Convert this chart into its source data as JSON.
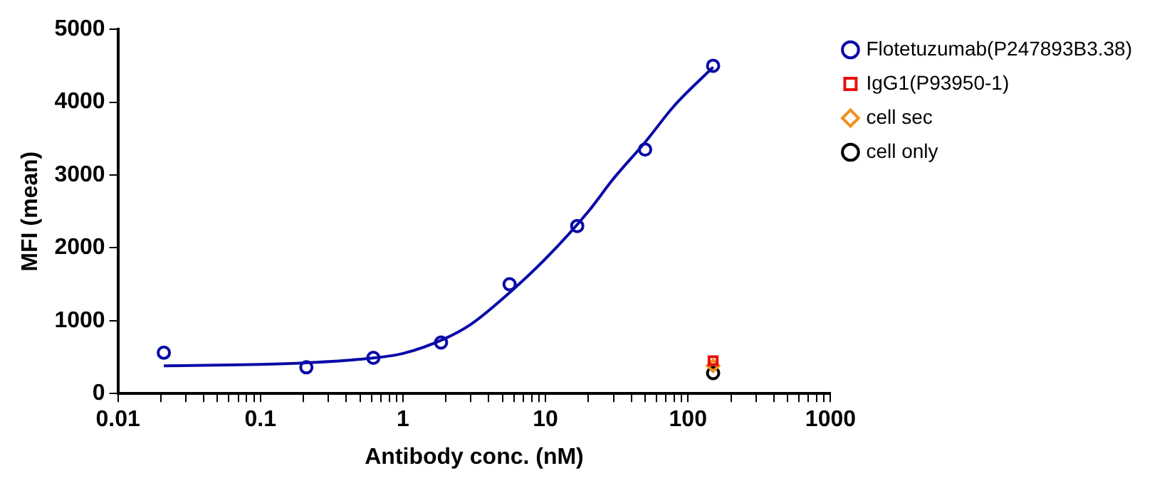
{
  "chart_data": {
    "type": "scatter",
    "xlabel": "Antibody conc. (nM)",
    "ylabel": "MFI (mean)",
    "log": "x",
    "xlim": [
      0.01,
      1000
    ],
    "ylim": [
      0,
      5000
    ],
    "xticks": [
      0.01,
      {
        "value": 0.02,
        "label": null
      },
      {
        "value": 0.03,
        "label": null
      },
      {
        "value": 0.04,
        "label": null
      },
      {
        "value": 0.05,
        "label": null
      },
      {
        "value": 0.06,
        "label": null
      },
      {
        "value": 0.07,
        "label": null
      },
      {
        "value": 0.08,
        "label": null
      },
      {
        "value": 0.09,
        "label": null
      },
      0.1,
      {
        "value": 0.2,
        "label": null
      },
      {
        "value": 0.3,
        "label": null
      },
      {
        "value": 0.4,
        "label": null
      },
      {
        "value": 0.5,
        "label": null
      },
      {
        "value": 0.6,
        "label": null
      },
      {
        "value": 0.7,
        "label": null
      },
      {
        "value": 0.8,
        "label": null
      },
      {
        "value": 0.9,
        "label": null
      },
      1,
      {
        "value": 2,
        "label": null
      },
      {
        "value": 3,
        "label": null
      },
      {
        "value": 4,
        "label": null
      },
      {
        "value": 5,
        "label": null
      },
      {
        "value": 6,
        "label": null
      },
      {
        "value": 7,
        "label": null
      },
      {
        "value": 8,
        "label": null
      },
      {
        "value": 9,
        "label": null
      },
      10,
      {
        "value": 20,
        "label": null
      },
      {
        "value": 30,
        "label": null
      },
      {
        "value": 40,
        "label": null
      },
      {
        "value": 50,
        "label": null
      },
      {
        "value": 60,
        "label": null
      },
      {
        "value": 70,
        "label": null
      },
      {
        "value": 80,
        "label": null
      },
      {
        "value": 90,
        "label": null
      },
      100,
      {
        "value": 200,
        "label": null
      },
      {
        "value": 300,
        "label": null
      },
      {
        "value": 400,
        "label": null
      },
      {
        "value": 500,
        "label": null
      },
      {
        "value": 600,
        "label": null
      },
      {
        "value": 700,
        "label": null
      },
      {
        "value": 800,
        "label": null
      },
      {
        "value": 900,
        "label": null
      },
      1000
    ],
    "yticks": [
      0,
      1000,
      2000,
      3000,
      4000,
      5000
    ],
    "grid": false,
    "legend": "right",
    "series": [
      {
        "type": "line",
        "color": "#0a0aa8",
        "marker": "none",
        "x": [
          0.021,
          0.05,
          0.1,
          0.2,
          0.5,
          1,
          2,
          3,
          5,
          10,
          20,
          30,
          50,
          80,
          150
        ],
        "values": [
          380,
          390,
          400,
          420,
          470,
          550,
          760,
          950,
          1300,
          1850,
          2500,
          2950,
          3450,
          3950,
          4480
        ]
      },
      {
        "name": "Flotetuzumab(P247893B3.38)",
        "color": "#0a0aa8",
        "marker": "circle",
        "x": [
          0.021,
          0.21,
          0.62,
          1.85,
          5.6,
          16.7,
          50,
          150
        ],
        "values": [
          560,
          360,
          490,
          700,
          1500,
          2300,
          3350,
          4500
        ]
      },
      {
        "name": "IgG1(P93950-1)",
        "color": "#e8100c",
        "marker": "square",
        "x": [
          150
        ],
        "values": [
          450
        ]
      },
      {
        "name": "cell sec",
        "color": "#f0901a",
        "marker": "diamond",
        "x": [
          150
        ],
        "values": [
          380
        ]
      },
      {
        "name": "cell only",
        "color": "#000000",
        "marker": "circle",
        "x": [
          150
        ],
        "values": [
          280
        ]
      }
    ]
  }
}
